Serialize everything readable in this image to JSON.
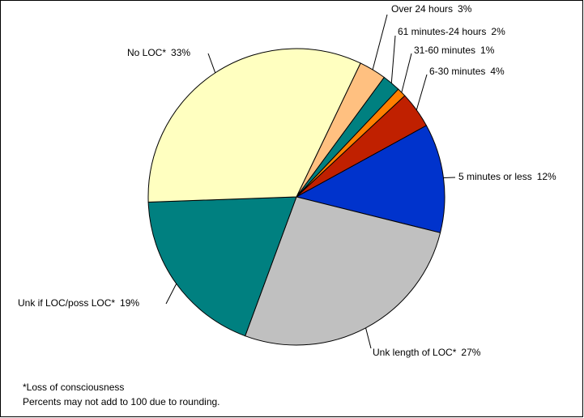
{
  "chart_data": {
    "type": "pie",
    "categories": [
      "Over 24 hours",
      "61 minutes-24 hours",
      "31-60 minutes",
      "6-30 minutes",
      "5 minutes or less",
      "Unk length of LOC*",
      "Unk if LOC/poss LOC*",
      "No LOC*"
    ],
    "values": [
      3,
      2,
      1,
      4,
      12,
      27,
      19,
      33
    ],
    "value_labels": [
      "3%",
      "2%",
      "1%",
      "4%",
      "12%",
      "27%",
      "19%",
      "33%"
    ],
    "colors": [
      "#ffc080",
      "#008080",
      "#ff8000",
      "#c02000",
      "#0033cc",
      "#c0c0c0",
      "#008080",
      "#ffffc0"
    ],
    "notes": [
      "*Loss of consciousness",
      "Percents may not add to 100 due to rounding."
    ]
  }
}
